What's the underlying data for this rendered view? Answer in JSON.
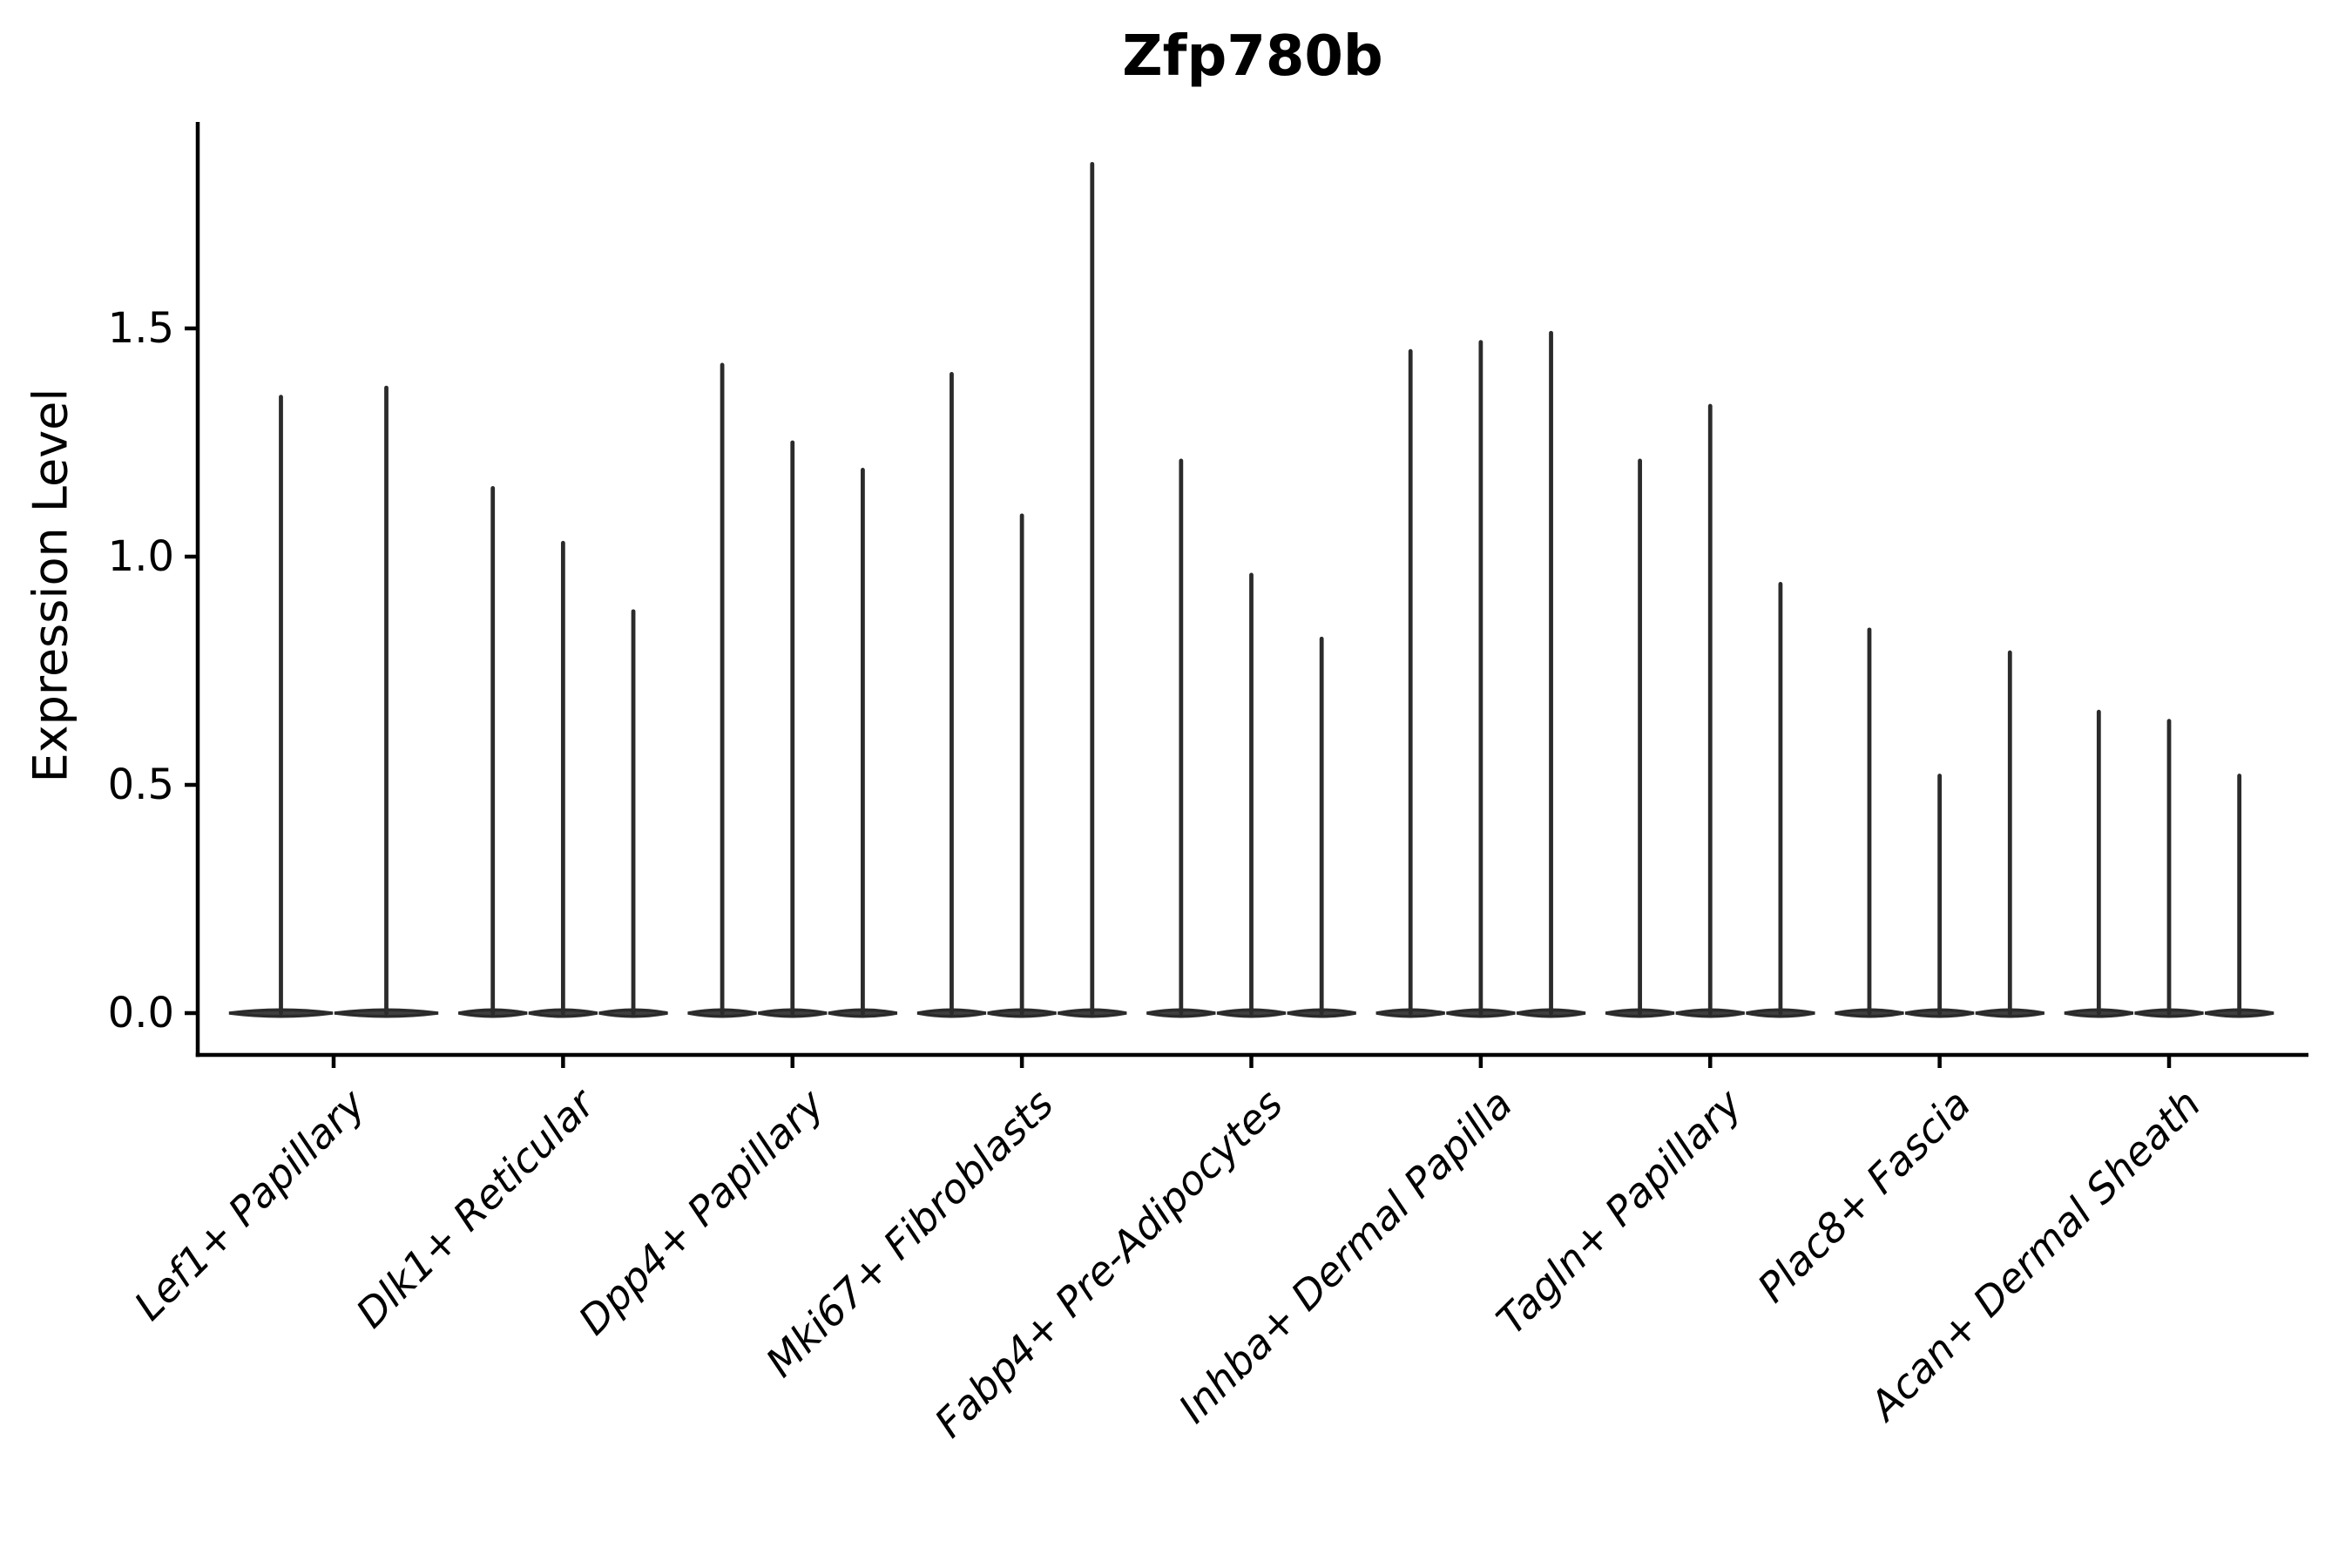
{
  "title": "Zfp780b",
  "y_axis": {
    "label": "Expression Level",
    "tick_labels": [
      "0.0",
      "0.5",
      "1.0",
      "1.5"
    ],
    "tick_values": [
      0,
      0.5,
      1.0,
      1.5
    ]
  },
  "x_axis": {
    "categories": [
      "Lef1+ Papillary",
      "Dlk1+ Reticular",
      "Dpp4+ Papillary",
      "Mki67+ Fibroblasts",
      "Fabp4+ Pre-Adipocytes",
      "Inhba+ Dermal Papilla",
      "Tagln+ Papillary",
      "Plac8+ Fascia",
      "Acan+ Dermal Sheath"
    ]
  },
  "chart_data": {
    "type": "violin",
    "title": "Zfp780b",
    "xlabel": "",
    "ylabel": "Expression Level",
    "ylim": [
      -0.09,
      1.95
    ],
    "yticks": [
      0,
      0.5,
      1.0,
      1.5
    ],
    "grid": false,
    "legend_position": "none",
    "categories": [
      "Lef1+ Papillary",
      "Dlk1+ Reticular",
      "Dpp4+ Papillary",
      "Mki67+ Fibroblasts",
      "Fabp4+ Pre-Adipocytes",
      "Inhba+ Dermal Papilla",
      "Tagln+ Papillary",
      "Plac8+ Fascia",
      "Acan+ Dermal Sheath"
    ],
    "series": [
      {
        "name": "Lef1+ Papillary",
        "violin_max": [
          1.35,
          1.37
        ],
        "violin_bulk_at": 0
      },
      {
        "name": "Dlk1+ Reticular",
        "violin_max": [
          1.15,
          1.03,
          0.88
        ],
        "violin_bulk_at": 0
      },
      {
        "name": "Dpp4+ Papillary",
        "violin_max": [
          1.42,
          1.25,
          1.19
        ],
        "violin_bulk_at": 0
      },
      {
        "name": "Mki67+ Fibroblasts",
        "violin_max": [
          1.4,
          1.09,
          1.86
        ],
        "violin_bulk_at": 0
      },
      {
        "name": "Fabp4+ Pre-Adipocytes",
        "violin_max": [
          1.21,
          0.96,
          0.82
        ],
        "violin_bulk_at": 0
      },
      {
        "name": "Inhba+ Dermal Papilla",
        "violin_max": [
          1.45,
          1.47,
          1.49
        ],
        "violin_bulk_at": 0
      },
      {
        "name": "Tagln+ Papillary",
        "violin_max": [
          1.21,
          1.33,
          0.94
        ],
        "violin_bulk_at": 0
      },
      {
        "name": "Plac8+ Fascia",
        "violin_max": [
          0.84,
          0.52,
          0.79
        ],
        "violin_bulk_at": 0
      },
      {
        "name": "Acan+ Dermal Sheath",
        "violin_max": [
          0.66,
          0.64,
          0.52
        ],
        "violin_bulk_at": 0
      }
    ],
    "style": {
      "violin_fill_color": "#3f3f3f",
      "violin_edge_color": "#2b2b2b",
      "spine_color": "#000000"
    }
  }
}
